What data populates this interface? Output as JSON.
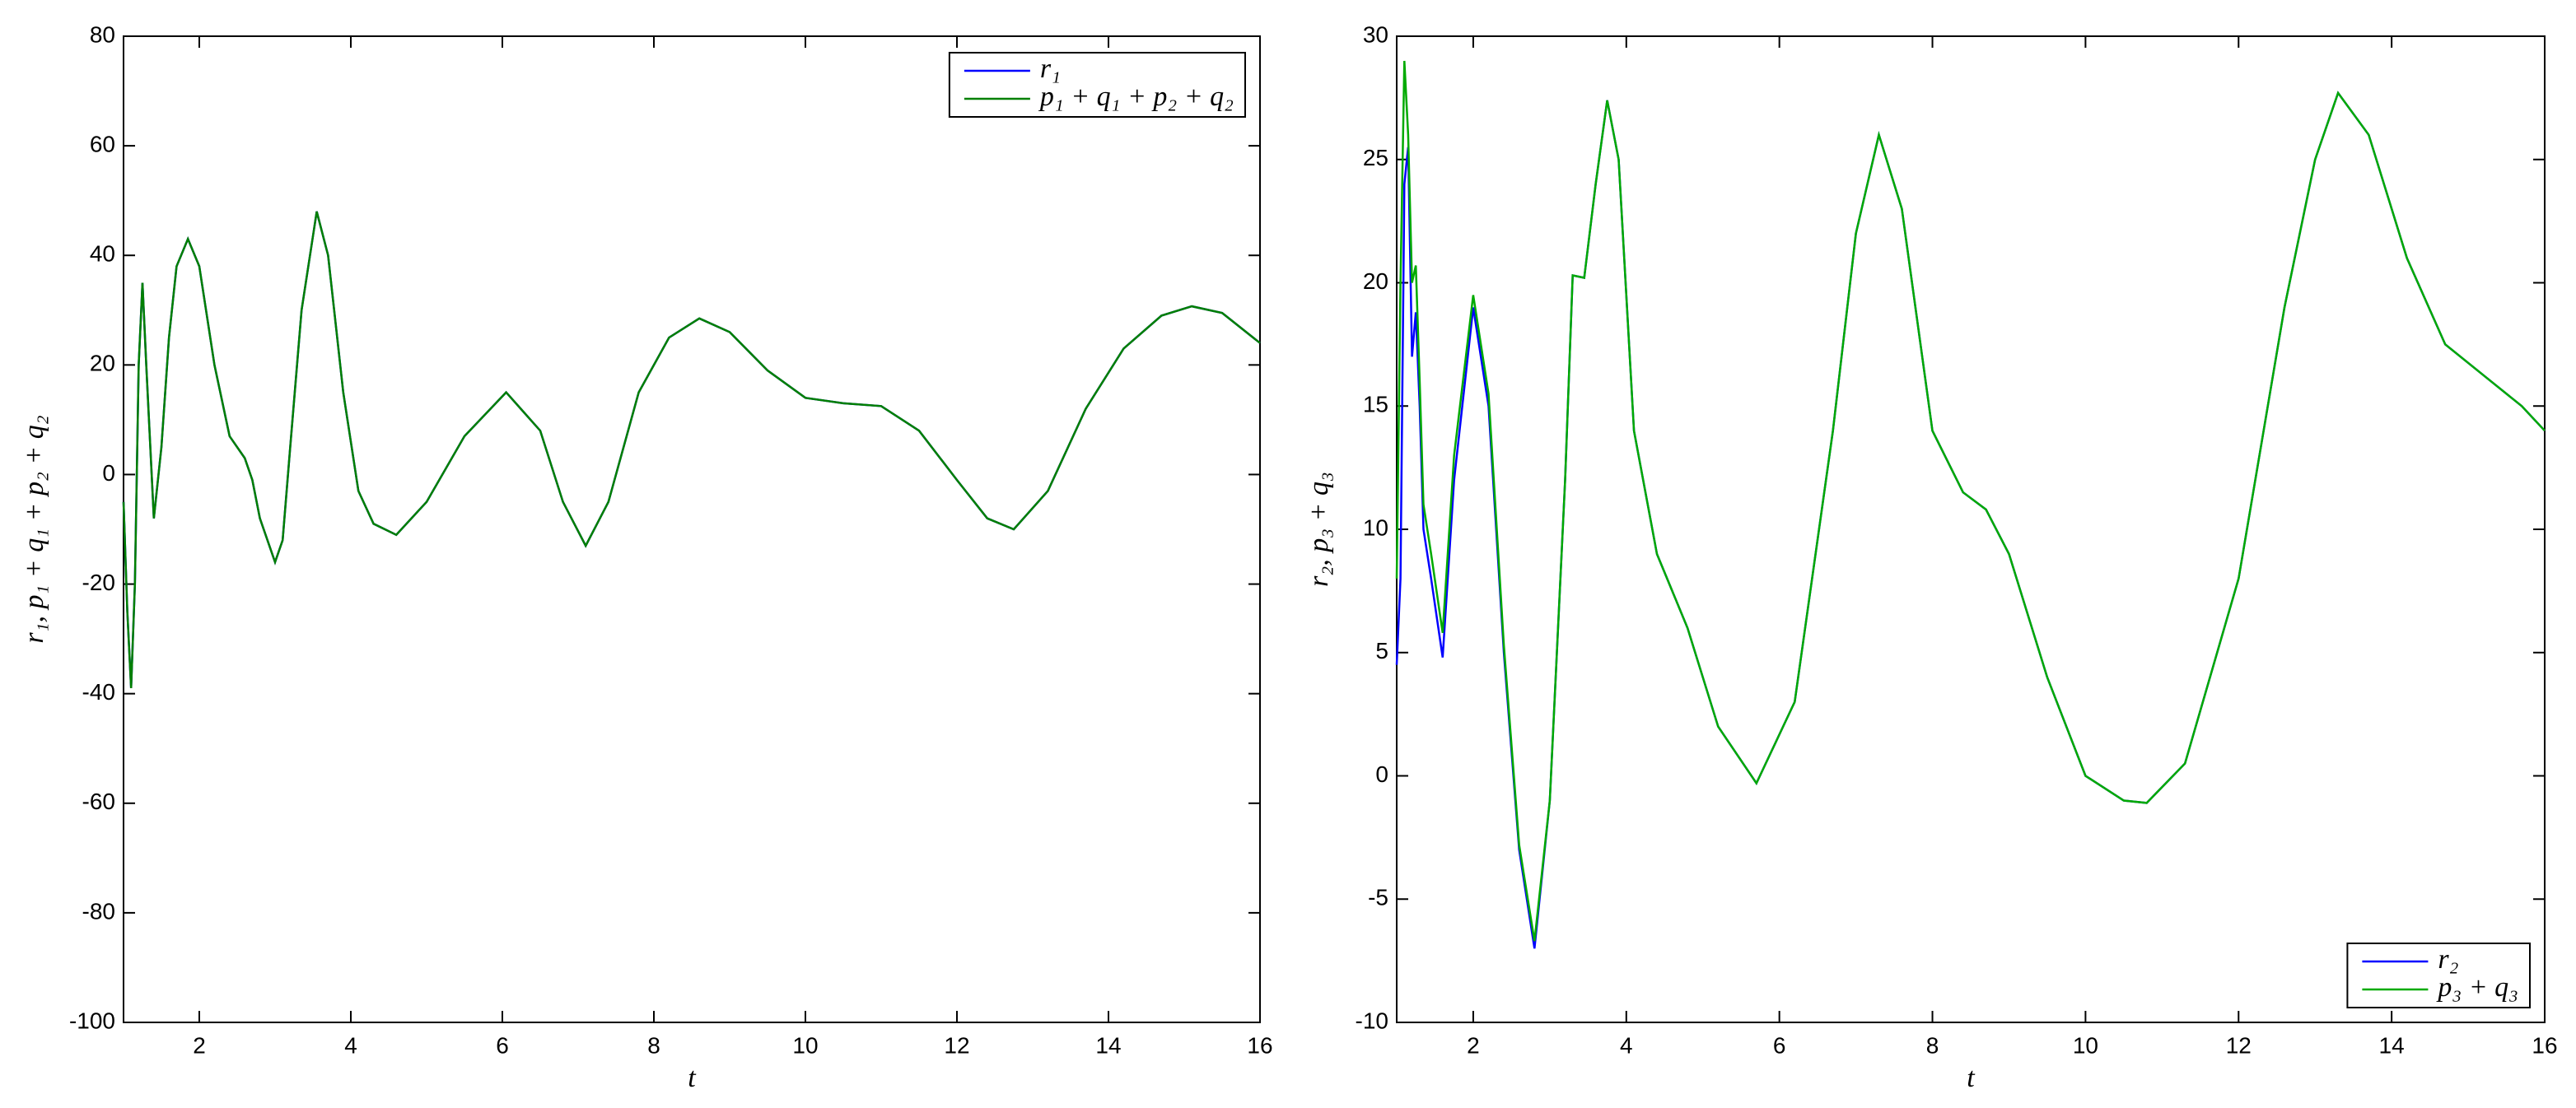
{
  "chart_data": [
    {
      "type": "line",
      "x_label": "t",
      "y_label": "r₁, p₁ + q₁ + p₂ + q₂",
      "xlim": [
        1,
        16
      ],
      "ylim": [
        -100,
        80
      ],
      "xticks": [
        2,
        4,
        6,
        8,
        10,
        12,
        14,
        16
      ],
      "yticks": [
        -100,
        -80,
        -60,
        -40,
        -20,
        0,
        20,
        40,
        60,
        80
      ],
      "grid": false,
      "legend": "upper right",
      "x": [
        1.0,
        1.05,
        1.1,
        1.15,
        1.2,
        1.25,
        1.3,
        1.4,
        1.5,
        1.6,
        1.7,
        1.85,
        2.0,
        2.2,
        2.4,
        2.6,
        2.7,
        2.8,
        3.0,
        3.1,
        3.2,
        3.35,
        3.55,
        3.7,
        3.9,
        4.1,
        4.3,
        4.6,
        5.0,
        5.5,
        6.05,
        6.5,
        6.8,
        7.1,
        7.4,
        7.8,
        8.2,
        8.6,
        9.0,
        9.5,
        10.0,
        10.5,
        11.0,
        11.5,
        12.0,
        12.4,
        12.75,
        13.2,
        13.7,
        14.2,
        14.7,
        15.1,
        15.5,
        16.0
      ],
      "series": [
        {
          "name": "r₁",
          "color": "#0000ff",
          "values": [
            -5,
            -25,
            -39,
            -20,
            20,
            35,
            20,
            -8,
            5,
            25,
            38,
            43,
            38,
            20,
            7,
            3,
            -1,
            -8,
            -16,
            -12,
            5,
            30,
            48,
            40,
            15,
            -3,
            -9,
            -11,
            -5,
            7,
            15,
            8,
            -5,
            -13,
            -5,
            15,
            25,
            28.5,
            26,
            19,
            14,
            13,
            12.5,
            8,
            -1,
            -8,
            -10,
            -3,
            12,
            23,
            29,
            30.7,
            29.5,
            24
          ]
        },
        {
          "name": "p₁ + q₁ + p₂ + q₂",
          "color": "#008000",
          "values": [
            -5,
            -25,
            -39,
            -20,
            20,
            35,
            20,
            -8,
            5,
            25,
            38,
            43,
            38,
            20,
            7,
            3,
            -1,
            -8,
            -16,
            -12,
            5,
            30,
            48,
            40,
            15,
            -3,
            -9,
            -11,
            -5,
            7,
            15,
            8,
            -5,
            -13,
            -5,
            15,
            25,
            28.5,
            26,
            19,
            14,
            13,
            12.5,
            8,
            -1,
            -8,
            -10,
            -3,
            12,
            23,
            29,
            30.7,
            29.5,
            24
          ]
        }
      ]
    },
    {
      "type": "line",
      "x_label": "t",
      "y_label": "r₂, p₃ + q₃",
      "xlim": [
        1,
        16
      ],
      "ylim": [
        -10,
        30
      ],
      "xticks": [
        2,
        4,
        6,
        8,
        10,
        12,
        14,
        16
      ],
      "yticks": [
        -10,
        -5,
        0,
        5,
        10,
        15,
        20,
        25,
        30
      ],
      "grid": false,
      "legend": "lower right",
      "x": [
        1.0,
        1.05,
        1.1,
        1.15,
        1.2,
        1.25,
        1.3,
        1.35,
        1.45,
        1.6,
        1.75,
        2.0,
        2.2,
        2.4,
        2.6,
        2.8,
        3.0,
        3.2,
        3.3,
        3.45,
        3.6,
        3.75,
        3.9,
        4.1,
        4.4,
        4.8,
        5.2,
        5.7,
        6.2,
        6.7,
        7.0,
        7.3,
        7.6,
        8.0,
        8.4,
        8.7,
        9.0,
        9.5,
        10.0,
        10.5,
        10.8,
        11.3,
        12.0,
        12.6,
        13.0,
        13.3,
        13.7,
        14.2,
        14.7,
        15.3,
        15.7,
        16.0
      ],
      "series": [
        {
          "name": "r₂",
          "color": "#0000ff",
          "values": [
            4.5,
            8,
            24,
            25.5,
            17,
            18.8,
            15,
            10,
            8,
            4.8,
            12,
            19,
            15,
            5,
            -3,
            -7,
            -1,
            12,
            20.3,
            20.2,
            24,
            27.4,
            25,
            14,
            9,
            6,
            2,
            -0.3,
            3,
            14,
            22,
            26,
            23,
            14,
            11.5,
            10.8,
            9,
            4,
            0,
            -1,
            -1.1,
            0.5,
            8,
            19,
            25,
            27.7,
            26,
            21,
            17.5,
            16,
            15,
            14
          ]
        },
        {
          "name": "p₃ + q₃",
          "color": "#00aa00",
          "values": [
            8,
            20,
            29,
            26,
            20,
            20.7,
            16,
            11,
            9,
            5.8,
            13,
            19.5,
            15.5,
            5.3,
            -2.8,
            -6.7,
            -1,
            12,
            20.3,
            20.2,
            24,
            27.4,
            25,
            14,
            9,
            6,
            2,
            -0.3,
            3,
            14,
            22,
            26,
            23,
            14,
            11.5,
            10.8,
            9,
            4,
            0,
            -1,
            -1.1,
            0.5,
            8,
            19,
            25,
            27.7,
            26,
            21,
            17.5,
            16,
            15,
            14
          ]
        }
      ]
    }
  ]
}
